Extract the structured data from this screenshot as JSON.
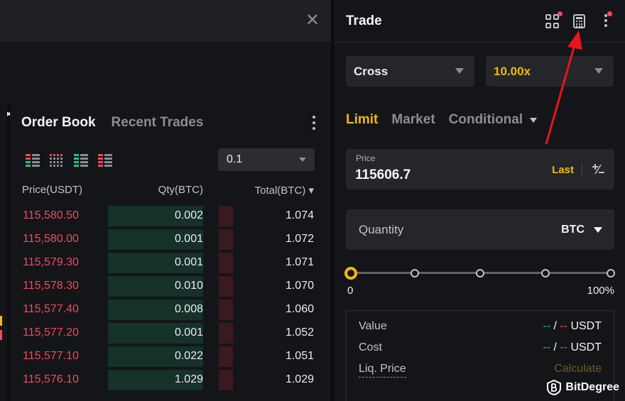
{
  "topbar": {
    "close_icon": "close-icon"
  },
  "subbar": {
    "more_icon": "horizontal-dots-icon",
    "book_icon": "book-icon"
  },
  "orderbook": {
    "tabs": [
      {
        "label": "Order Book",
        "active": true
      },
      {
        "label": "Recent Trades",
        "active": false
      }
    ],
    "tick_size": "0.1",
    "headers": {
      "price": "Price(USDT)",
      "qty": "Qty(BTC)",
      "total": "Total(BTC) ▾"
    },
    "rows": [
      {
        "price": "115,580.50",
        "qty": "0.002",
        "total": "1.074"
      },
      {
        "price": "115,580.00",
        "qty": "0.001",
        "total": "1.072"
      },
      {
        "price": "115,579.30",
        "qty": "0.001",
        "total": "1.071"
      },
      {
        "price": "115,578.30",
        "qty": "0.010",
        "total": "1.070"
      },
      {
        "price": "115,577.40",
        "qty": "0.008",
        "total": "1.060"
      },
      {
        "price": "115,577.20",
        "qty": "0.001",
        "total": "1.052"
      },
      {
        "price": "115,577.10",
        "qty": "0.022",
        "total": "1.051"
      },
      {
        "price": "115,576.10",
        "qty": "1.029",
        "total": "1.029"
      }
    ]
  },
  "trade": {
    "title": "Trade",
    "margin_mode": "Cross",
    "leverage": "10.00x",
    "order_tabs": [
      "Limit",
      "Market",
      "Conditional"
    ],
    "active_order_tab": "Limit",
    "price_label": "Price",
    "price_value": "115606.7",
    "last_label": "Last",
    "quantity_label": "Quantity",
    "quantity_unit": "BTC",
    "slider": {
      "min_label": "0",
      "max_label": "100%",
      "level": 0
    },
    "value_label": "Value",
    "value_long": "--",
    "value_sep": " / ",
    "value_short": "--",
    "value_unit": " USDT",
    "cost_label": "Cost",
    "cost_long": "--",
    "cost_sep": " / ",
    "cost_short": "--",
    "cost_unit": " USDT",
    "liq_label": "Liq. Price",
    "liq_value": "Calculate"
  },
  "watermark": {
    "text": "BitDegree"
  },
  "colors": {
    "accent": "#f0b90b",
    "sell": "#f6465d",
    "buy": "#2ebd85",
    "annotation": "#e8141c"
  }
}
